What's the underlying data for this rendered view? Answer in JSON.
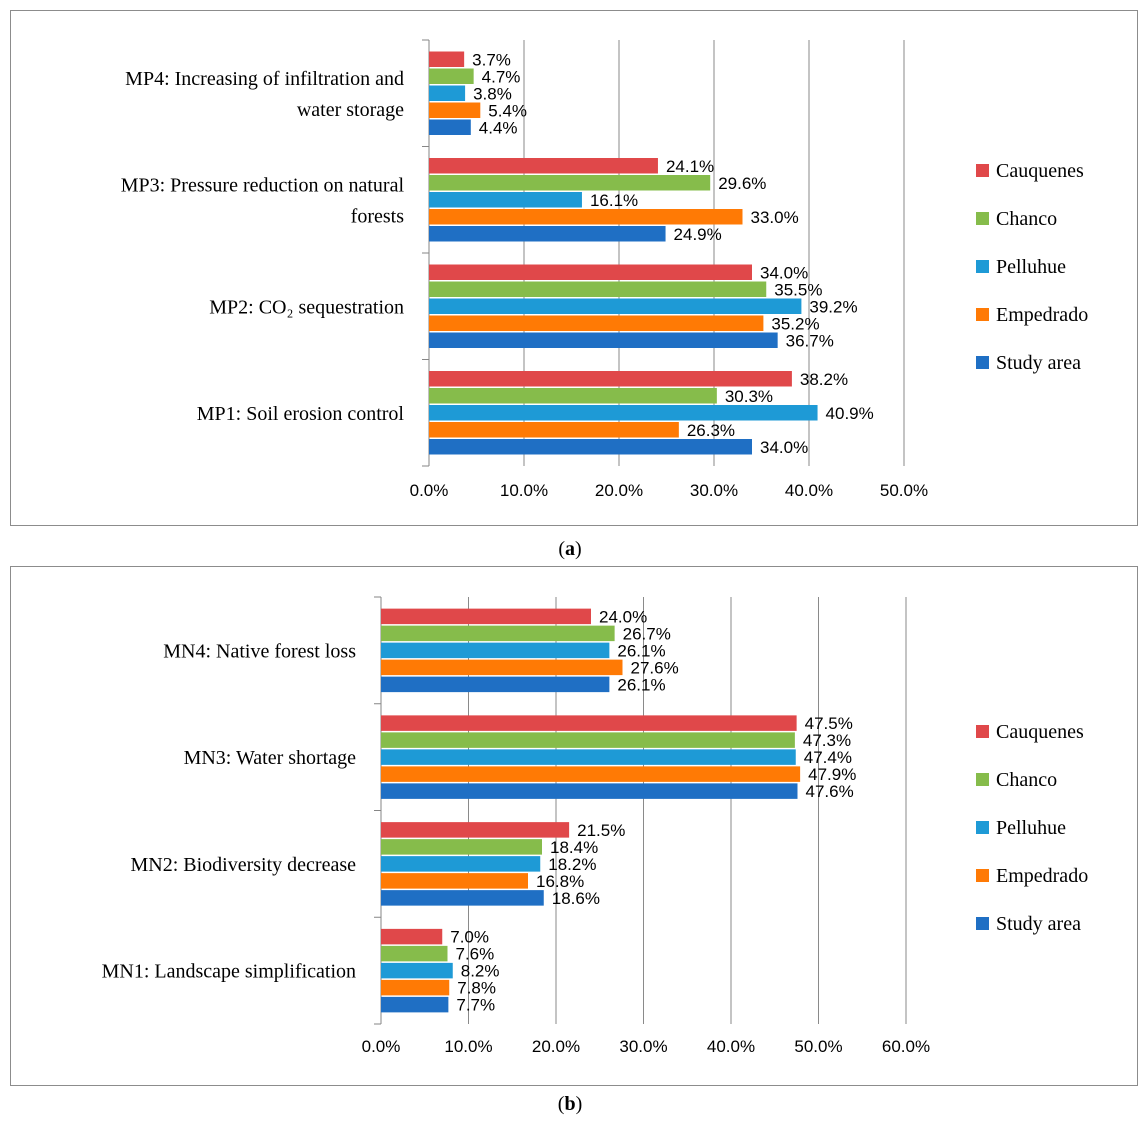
{
  "chart_data": [
    {
      "type": "bar",
      "orientation": "horizontal",
      "panel_label": "a",
      "categories": [
        [
          "MP1: Soil erosion control"
        ],
        [
          "MP2: CO₂ sequestration"
        ],
        [
          "MP3: Pressure reduction on natural",
          "forests"
        ],
        [
          "MP4: Increasing of infiltration and",
          "water storage"
        ]
      ],
      "series": [
        {
          "name": "Study area",
          "color": "#1f6fc4",
          "values": [
            34.0,
            36.7,
            24.9,
            4.4
          ]
        },
        {
          "name": "Empedrado",
          "color": "#ff7a05",
          "values": [
            26.3,
            35.2,
            33.0,
            5.4
          ]
        },
        {
          "name": "Pelluhue",
          "color": "#1e9ad6",
          "values": [
            40.9,
            39.2,
            16.1,
            3.8
          ]
        },
        {
          "name": "Chanco",
          "color": "#86bc4b",
          "values": [
            30.3,
            35.5,
            29.6,
            4.7
          ]
        },
        {
          "name": "Cauquenes",
          "color": "#e0484a",
          "values": [
            38.2,
            34.0,
            24.1,
            3.7
          ]
        }
      ],
      "ticks": [
        "0.0%",
        "10.0%",
        "20.0%",
        "30.0%",
        "40.0%",
        "50.0%"
      ],
      "xlim": [
        0,
        50
      ],
      "grid": true,
      "legend_position": "right"
    },
    {
      "type": "bar",
      "orientation": "horizontal",
      "panel_label": "b",
      "categories": [
        [
          "MN1: Landscape simplification"
        ],
        [
          "MN2: Biodiversity decrease"
        ],
        [
          "MN3: Water shortage"
        ],
        [
          "MN4: Native forest loss"
        ]
      ],
      "series": [
        {
          "name": "Study area",
          "color": "#1f6fc4",
          "values": [
            7.7,
            18.6,
            47.6,
            26.1
          ]
        },
        {
          "name": "Empedrado",
          "color": "#ff7a05",
          "values": [
            7.8,
            16.8,
            47.9,
            27.6
          ]
        },
        {
          "name": "Pelluhue",
          "color": "#1e9ad6",
          "values": [
            8.2,
            18.2,
            47.4,
            26.1
          ]
        },
        {
          "name": "Chanco",
          "color": "#86bc4b",
          "values": [
            7.6,
            18.4,
            47.3,
            26.7
          ]
        },
        {
          "name": "Cauquenes",
          "color": "#e0484a",
          "values": [
            7.0,
            21.5,
            47.5,
            24.0
          ]
        }
      ],
      "ticks": [
        "0.0%",
        "10.0%",
        "20.0%",
        "30.0%",
        "40.0%",
        "50.0%",
        "60.0%"
      ],
      "xlim": [
        0,
        60
      ],
      "grid": true,
      "legend_position": "right"
    }
  ]
}
